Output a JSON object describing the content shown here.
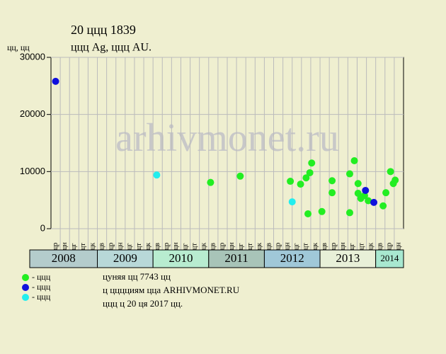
{
  "chart_data": {
    "type": "scatter",
    "title": "20 ццц 1839",
    "subtitle": "ццц Ag, ццц AU.",
    "y_label": "цц, цц",
    "watermark": "arhivmonet.ru",
    "ylim": [
      0,
      30000
    ],
    "yticks": [
      0,
      10000,
      20000,
      30000
    ],
    "grid": true,
    "xlim": [
      0,
      38
    ],
    "years": [
      {
        "label": "2008",
        "color": "#b4cccc",
        "months": [
          "цр",
          "цн",
          "цг",
          "цт",
          "цк"
        ]
      },
      {
        "label": "2009",
        "color": "#b8d8d8",
        "months": [
          "цв",
          "цр",
          "цн",
          "цг",
          "цт",
          "цк"
        ]
      },
      {
        "label": "2010",
        "color": "#b8ecd0",
        "months": [
          "цв",
          "цр",
          "цн",
          "цг",
          "цт",
          "цк"
        ]
      },
      {
        "label": "2011",
        "color": "#a8c4b8",
        "months": [
          "цв",
          "цр",
          "цн",
          "цг",
          "цт",
          "цк"
        ]
      },
      {
        "label": "2012",
        "color": "#a0c8d8",
        "months": [
          "цв",
          "цр",
          "цн",
          "цг",
          "цт",
          "цк"
        ]
      },
      {
        "label": "2013",
        "color": "#e8f0d8",
        "months": [
          "цв",
          "цр",
          "цн",
          "цг",
          "цт",
          "цк"
        ]
      },
      {
        "label": "2014",
        "color": "#a8e8d0",
        "months": [
          "цв",
          "цр",
          "цн"
        ]
      }
    ],
    "series": [
      {
        "name": "- ццц",
        "color": "#22ee22",
        "x": [
          17.2,
          20.4,
          25.8,
          26.9,
          27.5,
          27.9,
          28.1,
          27.7,
          29.2,
          30.3,
          30.3,
          32.2,
          32.7,
          32.2,
          33.1,
          33.1,
          33.4,
          33.8,
          34.2,
          35.8,
          36.1,
          36.6,
          36.9,
          37.1
        ],
        "values": [
          8100,
          9200,
          8300,
          7800,
          8900,
          9800,
          11500,
          2600,
          3000,
          8400,
          6300,
          9600,
          11900,
          2800,
          6200,
          7900,
          5300,
          5800,
          4900,
          4000,
          6300,
          10000,
          7900,
          8500
        ]
      },
      {
        "name": "- ццц",
        "color": "#1010dd",
        "x": [
          0.5,
          33.9,
          34.8
        ],
        "values": [
          25800,
          6700,
          4600
        ]
      },
      {
        "name": "- ццц",
        "color": "#22eeee",
        "x": [
          11.4,
          26.0
        ],
        "values": [
          9400,
          4700
        ]
      }
    ],
    "notes": [
      "цуняя цц 7743 цц",
      "ц цццциям цца ARHIVMONET.RU",
      "ццц ц 20 ця 2017 цц."
    ]
  }
}
